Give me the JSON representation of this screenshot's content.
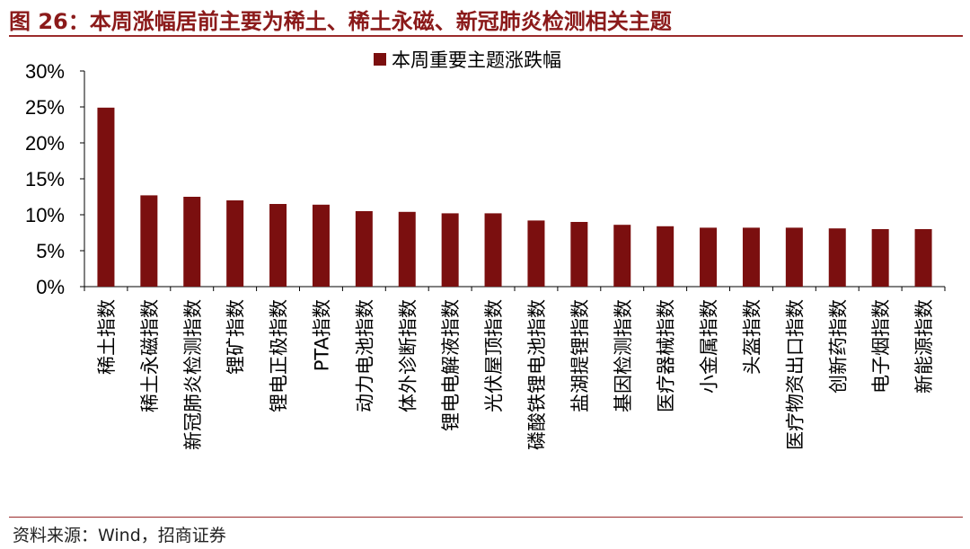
{
  "header": {
    "title": "图 26：本周涨幅居前主要为稀土、稀土永磁、新冠肺炎检测相关主题"
  },
  "footer": {
    "source": "资料来源：Wind，招商证券"
  },
  "colors": {
    "bar": "#7B0F0F",
    "title": "#8B1A1A",
    "rule": "#9B2B2B"
  },
  "chart_data": {
    "type": "bar",
    "title": "",
    "xlabel": "",
    "ylabel": "",
    "legend_position": "top-center",
    "grid": false,
    "ylim": [
      0,
      30
    ],
    "yticks": [
      "0%",
      "5%",
      "10%",
      "15%",
      "20%",
      "25%",
      "30%"
    ],
    "categories": [
      "稀土指数",
      "稀土永磁指数",
      "新冠肺炎检测指数",
      "锂矿指数",
      "锂电正极指数",
      "PTA指数",
      "动力电池指数",
      "体外诊断指数",
      "锂电电解液指数",
      "光伏屋顶指数",
      "磷酸铁锂电池指数",
      "盐湖提锂指数",
      "基因检测指数",
      "医疗器械指数",
      "小金属指数",
      "头盔指数",
      "医疗物资出口指数",
      "创新药指数",
      "电子烟指数",
      "新能源指数"
    ],
    "series": [
      {
        "name": "本周重要主题涨跌幅",
        "values": [
          24.9,
          12.7,
          12.5,
          12.0,
          11.5,
          11.4,
          10.5,
          10.4,
          10.2,
          10.2,
          9.2,
          9.0,
          8.6,
          8.4,
          8.2,
          8.2,
          8.2,
          8.1,
          8.0,
          8.0
        ]
      }
    ]
  }
}
